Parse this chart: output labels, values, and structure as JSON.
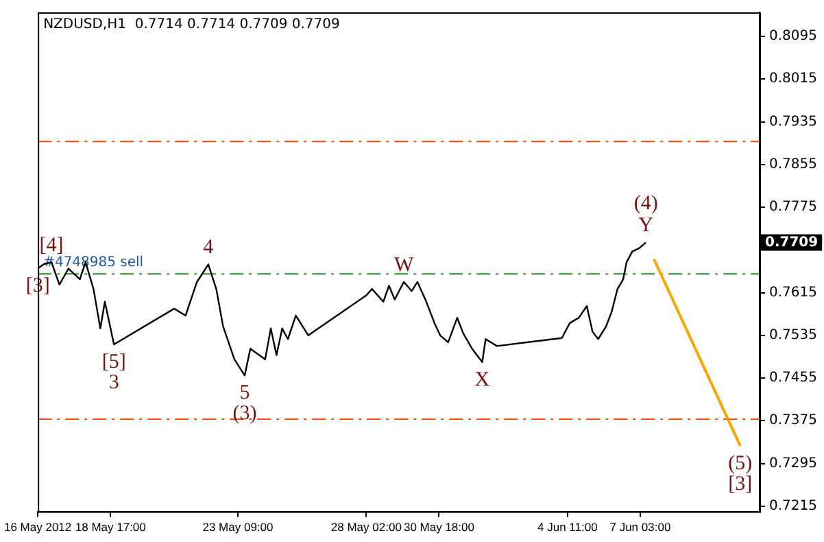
{
  "chart_data": {
    "type": "line",
    "title": "NZDUSD,H1  0.7714 0.7714 0.7709 0.7709",
    "series": [
      {
        "color": "#000000",
        "x": [
          "2012-05-16T01:00",
          "2012-05-16T06:00",
          "2012-05-16T13:00",
          "2012-05-16T20:00",
          "2012-05-17T04:00",
          "2012-05-17T14:00",
          "2012-05-17T19:00",
          "2012-05-18T02:00",
          "2012-05-18T08:00",
          "2012-05-18T12:00",
          "2012-05-18T20:00",
          "2012-05-21T01:00",
          "2012-05-21T11:00",
          "2012-05-21T21:00",
          "2012-05-22T07:00",
          "2012-05-22T14:00",
          "2012-05-22T20:00",
          "2012-05-23T06:00",
          "2012-05-23T15:00",
          "2012-05-23T20:00",
          "2012-05-24T09:00",
          "2012-05-24T14:00",
          "2012-05-24T19:00",
          "2012-05-25T00:00",
          "2012-05-25T05:00",
          "2012-05-25T12:00",
          "2012-05-25T23:00",
          "2012-05-28T02:00",
          "2012-05-28T07:00",
          "2012-05-28T17:00",
          "2012-05-28T22:00",
          "2012-05-29T03:00",
          "2012-05-29T11:00",
          "2012-05-29T18:00",
          "2012-05-29T23:00",
          "2012-05-30T06:00",
          "2012-05-30T14:00",
          "2012-05-30T19:00",
          "2012-05-31T02:00",
          "2012-05-31T10:00",
          "2012-05-31T15:00",
          "2012-05-31T23:00",
          "2012-06-01T08:00",
          "2012-06-01T11:00",
          "2012-06-01T21:00",
          "2012-06-04T06:00",
          "2012-06-04T13:00",
          "2012-06-04T21:00",
          "2012-06-05T04:00",
          "2012-06-05T09:00",
          "2012-06-05T14:00",
          "2012-06-05T21:00",
          "2012-06-06T02:00",
          "2012-06-06T07:00",
          "2012-06-06T12:00",
          "2012-06-06T15:00",
          "2012-06-06T20:00",
          "2012-06-07T02:00",
          "2012-06-07T08:00"
        ],
        "values": [
          0.766,
          0.7668,
          0.7672,
          0.763,
          0.766,
          0.764,
          0.7672,
          0.7622,
          0.7548,
          0.7598,
          0.7518,
          0.7585,
          0.7572,
          0.7635,
          0.7668,
          0.7622,
          0.7552,
          0.749,
          0.746,
          0.751,
          0.749,
          0.7548,
          0.7498,
          0.7548,
          0.7528,
          0.7572,
          0.7535,
          0.761,
          0.7622,
          0.7598,
          0.7628,
          0.7602,
          0.7635,
          0.7618,
          0.7635,
          0.7602,
          0.7558,
          0.7535,
          0.7522,
          0.7568,
          0.754,
          0.751,
          0.7485,
          0.7528,
          0.7515,
          0.753,
          0.7558,
          0.7568,
          0.759,
          0.7542,
          0.7528,
          0.7552,
          0.758,
          0.7622,
          0.764,
          0.7672,
          0.7692,
          0.7698,
          0.7709
        ]
      },
      {
        "color": "#ffa500",
        "x": [
          "2012-06-07T15:00",
          "2012-06-10T19:00"
        ],
        "values": [
          0.7678,
          0.7328
        ]
      }
    ],
    "xlim": [
      "2012-05-16T01:00",
      "2012-06-11T12:00"
    ],
    "xticks": [
      {
        "value": "2012-05-16T01:00",
        "label": "16 May 2012"
      },
      {
        "value": "2012-05-18T17:00",
        "label": "18 May 17:00"
      },
      {
        "value": "2012-05-23T09:00",
        "label": "23 May 09:00"
      },
      {
        "value": "2012-05-28T02:00",
        "label": "28 May 02:00"
      },
      {
        "value": "2012-05-30T18:00",
        "label": "30 May 18:00"
      },
      {
        "value": "2012-06-04T11:00",
        "label": "4 Jun 11:00"
      },
      {
        "value": "2012-06-07T03:00",
        "label": "7 Jun 03:00"
      }
    ],
    "ylim": [
      0.7205,
      0.814
    ],
    "yticks": [
      0.7215,
      0.7295,
      0.7375,
      0.7455,
      0.7535,
      0.7615,
      {
        "value": 0.7695,
        "label": null
      },
      0.7775,
      0.7855,
      0.7935,
      0.8015,
      0.8095
    ],
    "ref_lines": [
      {
        "axis": "y",
        "value": 0.7898,
        "color": "#ff4500",
        "line_style": "dashed"
      },
      {
        "axis": "y",
        "value": 0.7378,
        "color": "#ff4500",
        "line_style": "dashed"
      },
      {
        "axis": "y",
        "value": 0.765,
        "label": "#4748985 sell",
        "color": "#228b22",
        "line_style": "dashed"
      }
    ],
    "annotations": [
      {
        "text": "[3]",
        "x": "2012-05-16T01:00",
        "y": 0.766
      },
      {
        "text": "[4]",
        "x": "2012-05-16T13:00",
        "y": 0.7672
      },
      {
        "text": "[5]",
        "x": "2012-05-18T20:00",
        "y": 0.7518
      },
      {
        "text": "3",
        "x": "2012-05-18T20:00",
        "y": 0.7518
      },
      {
        "text": "4",
        "x": "2012-05-22T07:00",
        "y": 0.7668
      },
      {
        "text": "5",
        "x": "2012-05-23T15:00",
        "y": 0.746
      },
      {
        "text": "(3)",
        "x": "2012-05-23T15:00",
        "y": 0.746
      },
      {
        "text": "W",
        "x": "2012-05-29T11:00",
        "y": 0.7635
      },
      {
        "text": "X",
        "x": "2012-06-01T08:00",
        "y": 0.7485
      },
      {
        "text": "(4)",
        "x": "2012-06-07T08:00",
        "y": 0.7709
      },
      {
        "text": "Y",
        "x": "2012-06-07T08:00",
        "y": 0.7709
      },
      {
        "text": "(5)",
        "x": "2012-06-10T19:00",
        "y": 0.7328
      },
      {
        "text": "[3]",
        "x": "2012-06-10T19:00",
        "y": 0.7328
      },
      "0.7709"
    ],
    "grid": false,
    "legend": false,
    "marker": "none",
    "line_style": "solid"
  }
}
